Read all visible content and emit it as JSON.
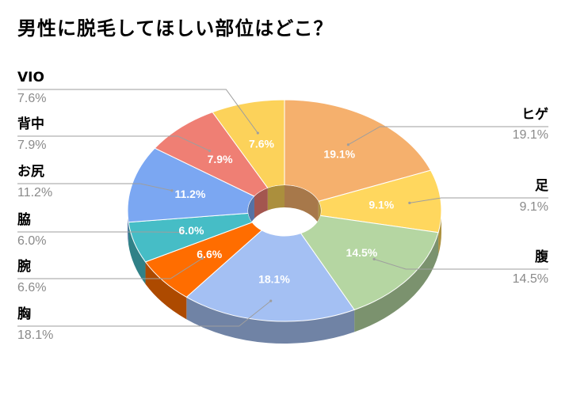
{
  "title": "男性に脱毛してほしい部位はどこ？",
  "chart_data": {
    "type": "pie",
    "subtype": "3d-donut",
    "title": "男性に脱毛してほしい部位はどこ？",
    "slices": [
      {
        "label": "ヒゲ",
        "value": 19.1,
        "value_text": "19.1%",
        "color": "#f5b06d"
      },
      {
        "label": "足",
        "value": 9.1,
        "value_text": "9.1%",
        "color": "#ffd75e"
      },
      {
        "label": "腹",
        "value": 14.5,
        "value_text": "14.5%",
        "color": "#b5d6a2"
      },
      {
        "label": "胸",
        "value": 18.1,
        "value_text": "18.1%",
        "color": "#a4c0f3"
      },
      {
        "label": "腕",
        "value": 6.6,
        "value_text": "6.6%",
        "color": "#ff6d00"
      },
      {
        "label": "脇",
        "value": 6.0,
        "value_text": "6.0%",
        "color": "#46bdc6"
      },
      {
        "label": "お尻",
        "value": 11.2,
        "value_text": "11.2%",
        "color": "#7ba7f2"
      },
      {
        "label": "背中",
        "value": 7.9,
        "value_text": "7.9%",
        "color": "#ef7f74"
      },
      {
        "label": "VIO",
        "value": 7.6,
        "value_text": "7.6%",
        "color": "#fcd25a"
      }
    ],
    "start_angle_deg": 90,
    "direction": "clockwise",
    "legend": "none",
    "labels": "outside with leader lines, percentage inside slices"
  }
}
